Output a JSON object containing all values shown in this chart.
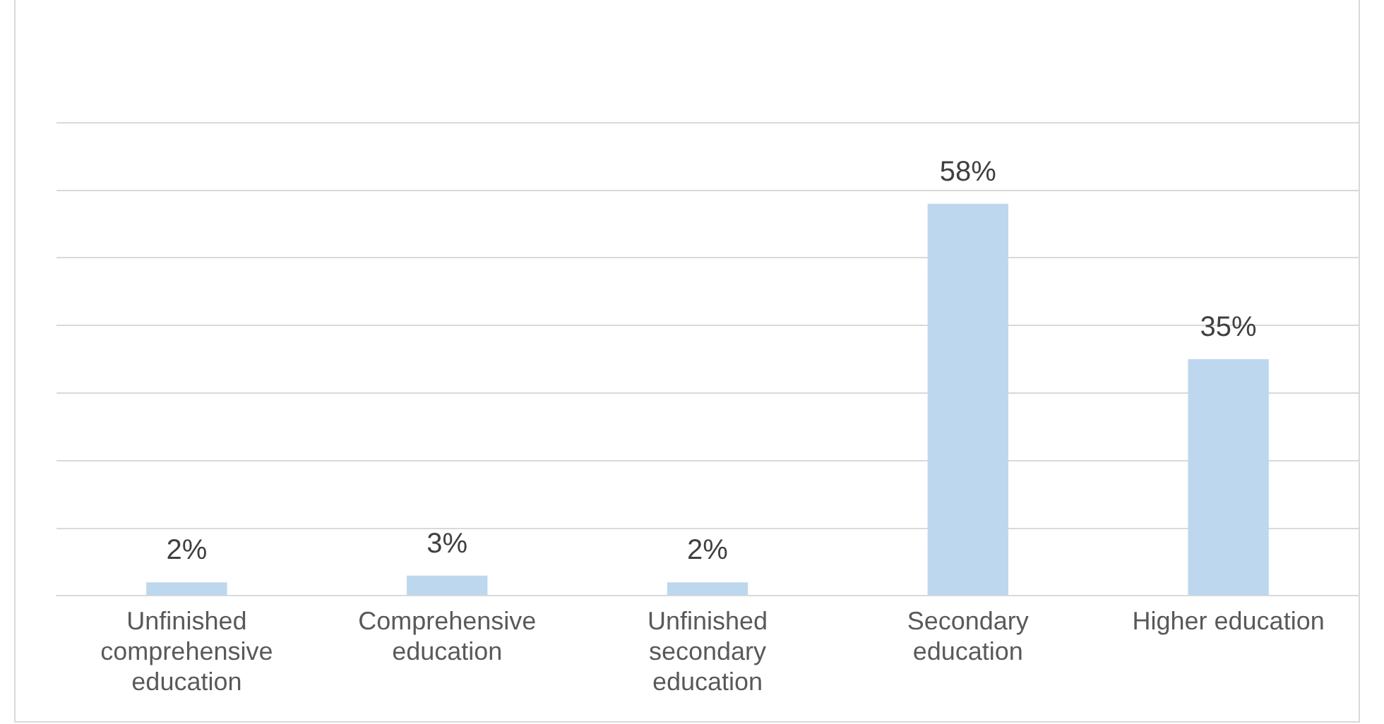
{
  "chart_data": {
    "type": "bar",
    "categories": [
      "Unfinished comprehensive education",
      "Comprehensive education",
      "Unfinished secondary education",
      "Secondary education",
      "Higher education"
    ],
    "values": [
      2,
      3,
      2,
      58,
      35
    ],
    "value_labels": [
      "2%",
      "3%",
      "2%",
      "58%",
      "35%"
    ],
    "color": "#bdd7ee",
    "tick_labels": "x",
    "grid": "y",
    "legend": false
  }
}
